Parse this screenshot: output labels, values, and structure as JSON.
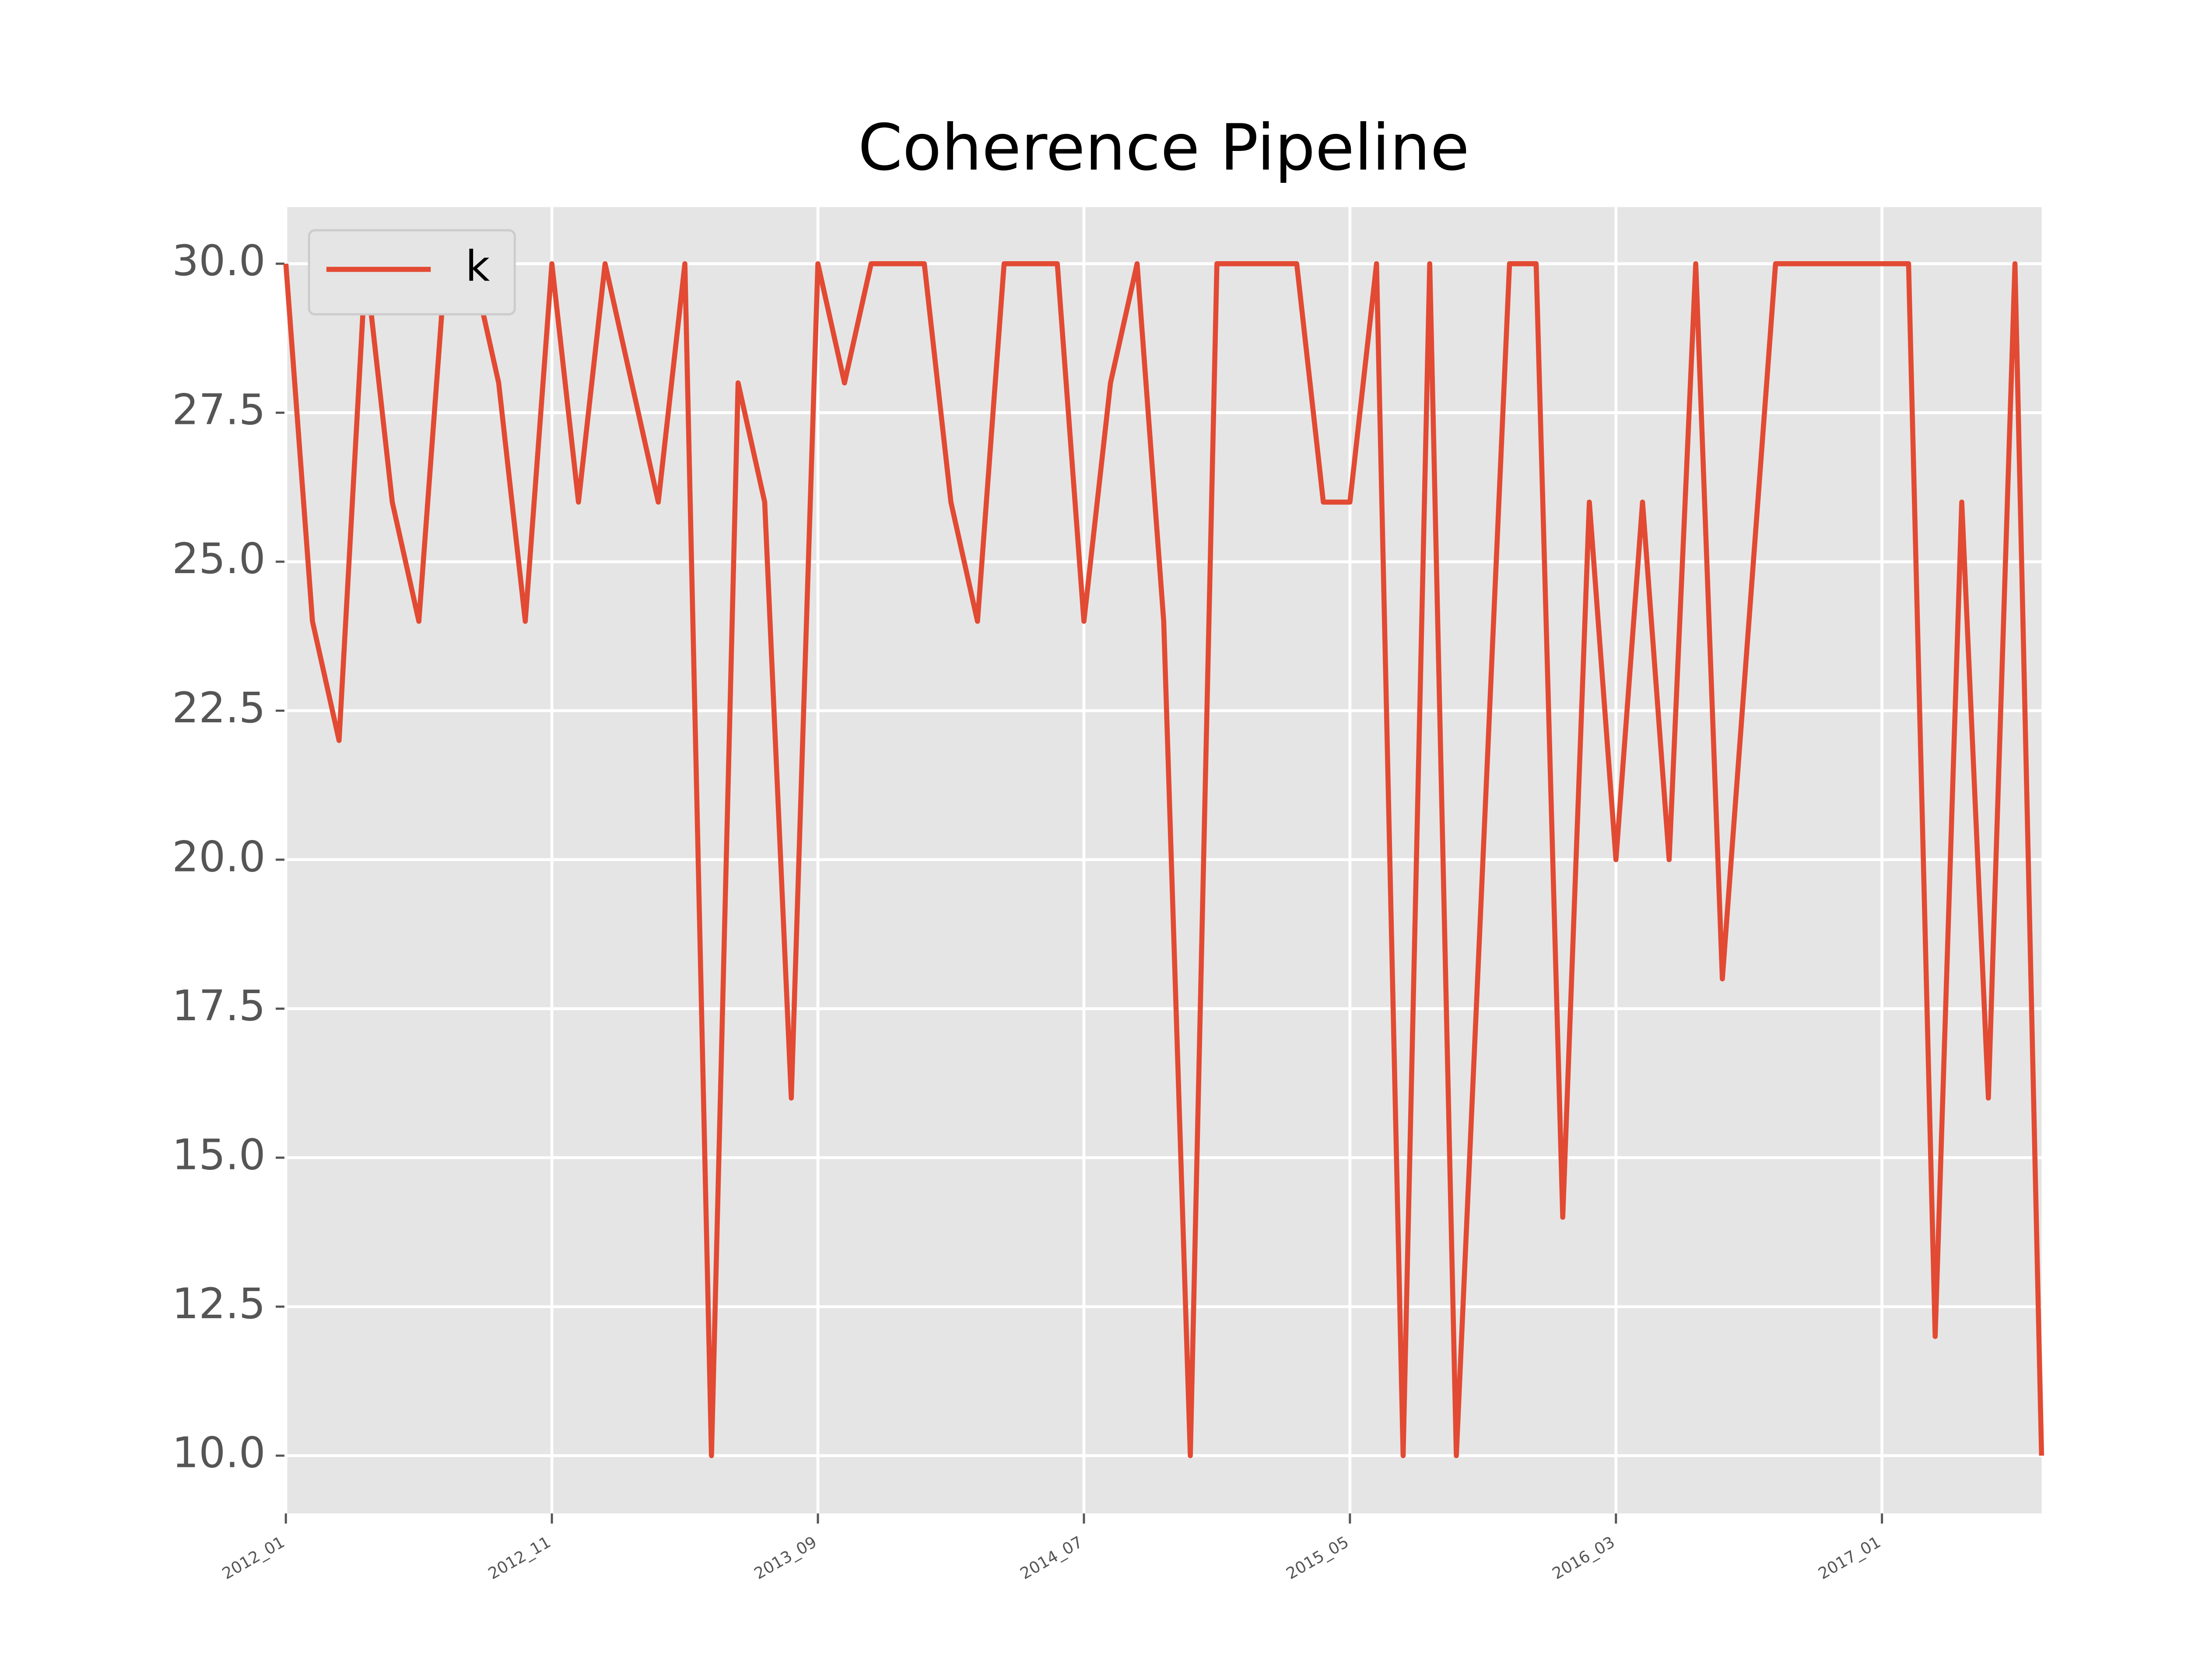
{
  "chart_data": {
    "type": "line",
    "title": "Coherence Pipeline",
    "categories": [
      "2012_01",
      null,
      null,
      null,
      null,
      null,
      null,
      null,
      null,
      null,
      "2012_11",
      null,
      null,
      null,
      null,
      null,
      null,
      null,
      null,
      null,
      "2013_09",
      null,
      null,
      null,
      null,
      null,
      null,
      null,
      null,
      null,
      "2014_07",
      null,
      null,
      null,
      null,
      null,
      null,
      null,
      null,
      null,
      "2015_05",
      null,
      null,
      null,
      null,
      null,
      null,
      null,
      null,
      null,
      "2016_03",
      null,
      null,
      null,
      null,
      null,
      null,
      null,
      null,
      null,
      "2017_01",
      null,
      null,
      null,
      null,
      null,
      null
    ],
    "series": [
      {
        "name": "k",
        "color": "#e24a33",
        "values": [
          30,
          24,
          22,
          30,
          26,
          24,
          30,
          30,
          28,
          24,
          30,
          26,
          30,
          28,
          26,
          30,
          10,
          28,
          26,
          16,
          30,
          28,
          30,
          30,
          30,
          26,
          24,
          30,
          30,
          30,
          24,
          28,
          30,
          24,
          10,
          30,
          30,
          30,
          30,
          26,
          26,
          30,
          10,
          30,
          10,
          20,
          30,
          30,
          14,
          26,
          20,
          26,
          20,
          30,
          18,
          24,
          30,
          30,
          30,
          30,
          30,
          30,
          12,
          26,
          16,
          30,
          10
        ]
      }
    ],
    "ylim": [
      9.03,
      30.95
    ],
    "yticks": [
      {
        "value": 10,
        "label": "10.0"
      },
      {
        "value": 12.5,
        "label": "12.5"
      },
      {
        "value": 15,
        "label": "15.0"
      },
      {
        "value": 17.5,
        "label": "17.5"
      },
      {
        "value": 20,
        "label": "20.0"
      },
      {
        "value": 22.5,
        "label": "22.5"
      },
      {
        "value": 25,
        "label": "25.0"
      },
      {
        "value": 27.5,
        "label": "27.5"
      },
      {
        "value": 30,
        "label": "30.0"
      }
    ],
    "grid": true,
    "legend": "upper left"
  }
}
